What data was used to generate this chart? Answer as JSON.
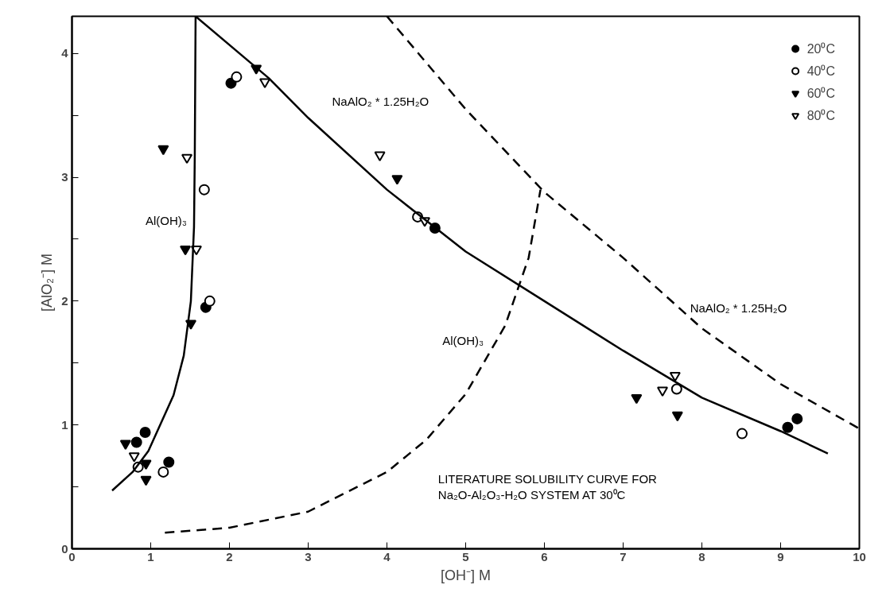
{
  "chart_data": {
    "type": "scatter",
    "xlabel": "[OH⁻] M",
    "ylabel": "[AlO₂⁻] M",
    "xlim": [
      0,
      10
    ],
    "ylim": [
      0,
      4.3
    ],
    "xticks": [
      0,
      1,
      2,
      3,
      4,
      5,
      6,
      7,
      8,
      9,
      10
    ],
    "yticks": [
      0,
      {
        "value": 0.5,
        "label": null
      },
      1,
      {
        "value": 1.5,
        "label": null
      },
      2,
      {
        "value": 2.5,
        "label": null
      },
      3,
      {
        "value": 3.5,
        "label": null
      },
      4
    ],
    "grid": false,
    "legend": "top right",
    "series": [
      {
        "name": "20⁰C",
        "color": "#000000",
        "marker": "circle",
        "x": [
          0.93,
          0.82,
          1.23,
          1.7,
          2.02,
          4.61,
          9.09,
          9.21
        ],
        "values": [
          0.94,
          0.86,
          0.7,
          1.95,
          3.76,
          2.59,
          0.98,
          1.05
        ]
      },
      {
        "name": "40⁰C",
        "color": "#ffffff",
        "marker": "circle",
        "x": [
          0.84,
          0.86,
          1.16,
          1.68,
          1.75,
          2.09,
          4.39,
          7.68,
          8.51
        ],
        "values": [
          0.66,
          null,
          0.62,
          2.9,
          2.0,
          3.81,
          2.68,
          1.29,
          0.93
        ]
      },
      {
        "name": "60⁰C",
        "color": "#000000",
        "marker": "triangle",
        "x": [
          0.68,
          0.94,
          0.94,
          1.16,
          1.44,
          1.51,
          2.34,
          4.13,
          7.17,
          7.69
        ],
        "values": [
          0.85,
          0.69,
          0.56,
          3.23,
          2.42,
          1.82,
          3.88,
          2.99,
          1.22,
          1.08
        ]
      },
      {
        "name": "80⁰C",
        "color": "#ffffff",
        "marker": "triangle",
        "x": [
          0.79,
          1.46,
          1.58,
          2.45,
          3.91,
          4.48,
          7.5,
          7.66
        ],
        "values": [
          0.75,
          3.16,
          2.42,
          3.77,
          3.18,
          2.65,
          1.28,
          1.4
        ]
      },
      {
        "type": "line",
        "color": "#000000",
        "line_style": "solid",
        "x": [
          0.51,
          0.77,
          0.97,
          1.29,
          1.42,
          1.51,
          1.55,
          1.56,
          1.57
        ],
        "values": [
          0.47,
          0.62,
          0.79,
          1.24,
          1.56,
          2.0,
          2.6,
          3.2,
          4.3
        ]
      },
      {
        "type": "line",
        "color": "#000000",
        "line_style": "solid",
        "x": [
          1.57,
          2.5,
          3,
          4,
          5,
          6,
          7,
          8,
          9,
          9.6
        ],
        "values": [
          4.3,
          3.8,
          3.48,
          2.9,
          2.4,
          2.0,
          1.6,
          1.22,
          0.95,
          0.77
        ]
      },
      {
        "type": "line",
        "color": "#000000",
        "line_style": "dashed",
        "x": [
          1.18,
          2,
          3,
          4,
          4.5,
          5,
          5.5,
          5.8,
          5.95
        ],
        "values": [
          0.13,
          0.17,
          0.3,
          0.62,
          0.88,
          1.25,
          1.8,
          2.35,
          2.9
        ]
      },
      {
        "type": "line",
        "color": "#000000",
        "line_style": "dashed",
        "x": [
          4,
          5,
          6,
          7,
          8,
          9,
          10
        ],
        "values": [
          4.3,
          3.55,
          2.88,
          2.35,
          1.78,
          1.33,
          0.97
        ]
      }
    ],
    "annotations": [
      {
        "text": "NaAlO₂ * 1.25H₂O",
        "x": 3.0,
        "y": 3.48
      },
      "NaAlO₂ * 1.25H₂O",
      {
        "text": "Al(OH)₃",
        "x": 1.56,
        "y": 2.65
      },
      {
        "text": "Al(OH)₃",
        "x": 5.33,
        "y": 1.55
      },
      "LITERATURE SOLUBILITY CURVE FOR\nNa₂O-Al₂O₃-H₂O SYSTEM AT 30⁰C"
    ]
  }
}
